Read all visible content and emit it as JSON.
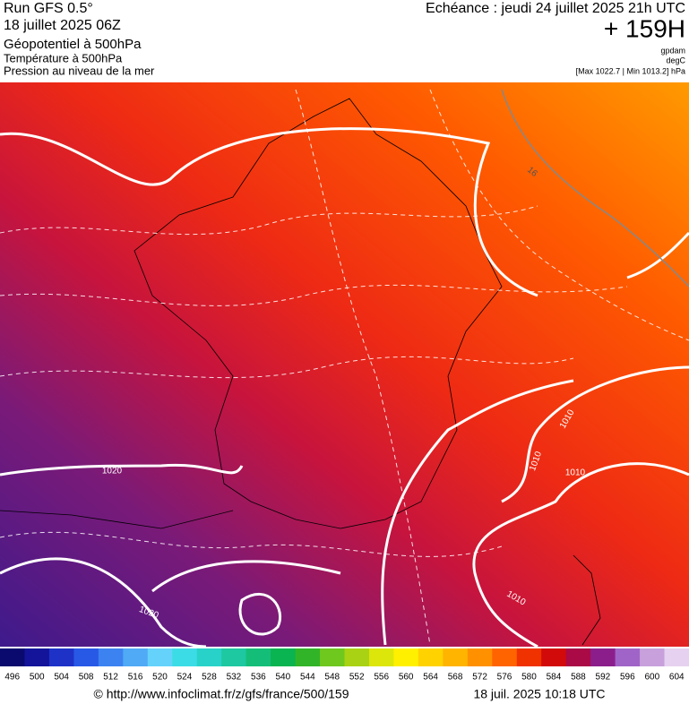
{
  "header": {
    "run": "Run GFS 0.5°",
    "run_time": "18 juillet 2025 06Z",
    "field": "Géopotentiel à 500hPa",
    "subfield_1": "Température à 500hPa",
    "subfield_2": "Pression au niveau de la mer",
    "forecast": "Echéance : jeudi 24 juillet 2025 21h UTC",
    "lead": "+ 159H",
    "unit_1": "gpdam",
    "unit_2": "degC",
    "extremes": "[Max 1022.7 | Min 1013.2] hPa"
  },
  "map": {
    "contour_labels": [
      "1020",
      "1010",
      "1010",
      "1010",
      "1010",
      "1020",
      "16"
    ]
  },
  "colorbar": {
    "labels": [
      496,
      500,
      504,
      508,
      512,
      516,
      520,
      524,
      528,
      532,
      536,
      540,
      544,
      548,
      552,
      556,
      560,
      564,
      568,
      572,
      576,
      580,
      584,
      588,
      592,
      596,
      600,
      604
    ],
    "colors": [
      "#0a0a6e",
      "#14149b",
      "#1e32c8",
      "#2858e6",
      "#3c82f0",
      "#50aaf5",
      "#64d2fa",
      "#3cdce6",
      "#28d2c8",
      "#1ec8a0",
      "#14be78",
      "#0ab450",
      "#32b428",
      "#6ec81e",
      "#aad214",
      "#dce60a",
      "#fff000",
      "#ffd200",
      "#ffb400",
      "#ff9100",
      "#ff6400",
      "#f03200",
      "#d20a0a",
      "#aa0a46",
      "#8c1e8c",
      "#a064c8",
      "#c8a0dc",
      "#e6d2f0"
    ]
  },
  "footer": {
    "url": "© http://www.infoclimat.fr/z/gfs/france/500/159",
    "timestamp": "18 juil. 2025 10:18 UTC"
  }
}
